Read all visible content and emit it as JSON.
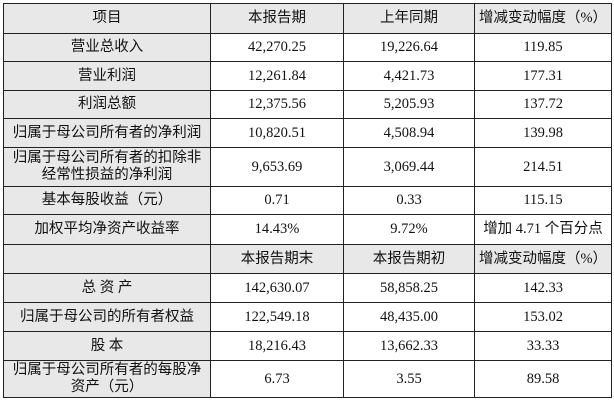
{
  "header1": [
    "项目",
    "本报告期",
    "上年同期",
    "增减变动幅度（%）"
  ],
  "rows1": [
    {
      "label": "营业总收入",
      "values": [
        "42,270.25",
        "19,226.64",
        "119.85"
      ]
    },
    {
      "label": "营业利润",
      "values": [
        "12,261.84",
        "4,421.73",
        "177.31"
      ]
    },
    {
      "label": "利润总额",
      "values": [
        "12,375.56",
        "5,205.93",
        "137.72"
      ]
    },
    {
      "label": "归属于母公司所有者的净利润",
      "values": [
        "10,820.51",
        "4,508.94",
        "139.98"
      ]
    },
    {
      "label": "归属于母公司所有者的扣除非经常性损益的净利润",
      "values": [
        "9,653.69",
        "3,069.44",
        "214.51"
      ]
    },
    {
      "label": "基本每股收益（元）",
      "values": [
        "0.71",
        "0.33",
        "115.15"
      ]
    },
    {
      "label": "加权平均净资产收益率",
      "values": [
        "14.43%",
        "9.72%",
        "增加 4.71 个百分点"
      ]
    }
  ],
  "header2": [
    "",
    "本报告期末",
    "本报告期初",
    "增减变动幅度（%）"
  ],
  "rows2": [
    {
      "label": "总 资 产",
      "values": [
        "142,630.07",
        "58,858.25",
        "142.33"
      ]
    },
    {
      "label": "归属于母公司的所有者权益",
      "values": [
        "122,549.18",
        "48,435.00",
        "153.02"
      ]
    },
    {
      "label": "股 本",
      "values": [
        "18,216.43",
        "13,662.33",
        "33.33"
      ]
    },
    {
      "label": "归属于母公司所有者的每股净资产（元）",
      "values": [
        "6.73",
        "3.55",
        "89.58"
      ]
    }
  ]
}
